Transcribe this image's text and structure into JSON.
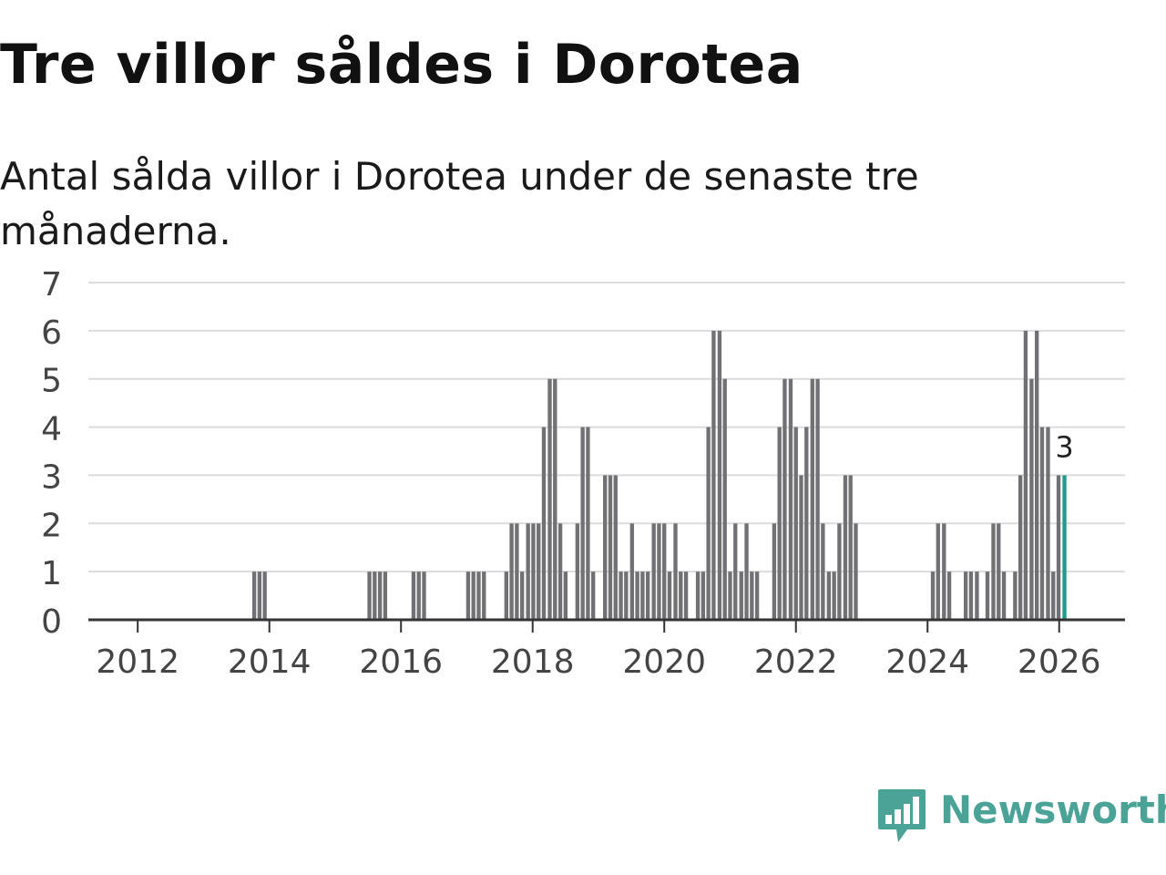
{
  "header": {
    "title": "Tre villor såldes i Dorotea",
    "subtitle": "Antal sålda villor i Dorotea under de senaste tre månaderna."
  },
  "brand": {
    "name": "Newsworthy",
    "icon": "bar-chart-speech-bubble-icon",
    "color": "#4aa396"
  },
  "colors": {
    "bar": "#717175",
    "highlight": "#1a9e8c",
    "grid": "#dcdcdc",
    "axis": "#333333",
    "tick_text": "#444444"
  },
  "chart_data": {
    "type": "bar",
    "title": "Tre villor såldes i Dorotea",
    "subtitle": "Antal sålda villor i Dorotea under de senaste tre månaderna.",
    "xlabel": "",
    "ylabel": "",
    "ylim": [
      0,
      7
    ],
    "yticks": [
      "0",
      "1",
      "2",
      "3",
      "4",
      "5",
      "6",
      "7"
    ],
    "grid": true,
    "x_tick_labels": [
      "2012",
      "2014",
      "2016",
      "2018",
      "2020",
      "2022",
      "2024",
      "2026"
    ],
    "x_tick_years": [
      2012,
      2014,
      2016,
      2018,
      2020,
      2022,
      2024,
      2026
    ],
    "x_range": [
      2011.25,
      2027.0
    ],
    "bar_width_years": 0.06,
    "series": [
      {
        "name": "Antal sålda villor",
        "points": [
          {
            "x": 2013.77,
            "y": 1
          },
          {
            "x": 2013.85,
            "y": 1
          },
          {
            "x": 2013.93,
            "y": 1
          },
          {
            "x": 2015.52,
            "y": 1
          },
          {
            "x": 2015.6,
            "y": 1
          },
          {
            "x": 2015.68,
            "y": 1
          },
          {
            "x": 2015.76,
            "y": 1
          },
          {
            "x": 2016.19,
            "y": 1
          },
          {
            "x": 2016.27,
            "y": 1
          },
          {
            "x": 2016.35,
            "y": 1
          },
          {
            "x": 2017.02,
            "y": 1
          },
          {
            "x": 2017.1,
            "y": 1
          },
          {
            "x": 2017.18,
            "y": 1
          },
          {
            "x": 2017.26,
            "y": 1
          },
          {
            "x": 2017.6,
            "y": 1
          },
          {
            "x": 2017.68,
            "y": 2
          },
          {
            "x": 2017.76,
            "y": 2
          },
          {
            "x": 2017.84,
            "y": 1
          },
          {
            "x": 2017.93,
            "y": 2
          },
          {
            "x": 2018.01,
            "y": 2
          },
          {
            "x": 2018.09,
            "y": 2
          },
          {
            "x": 2018.17,
            "y": 4
          },
          {
            "x": 2018.26,
            "y": 5
          },
          {
            "x": 2018.34,
            "y": 5
          },
          {
            "x": 2018.42,
            "y": 2
          },
          {
            "x": 2018.5,
            "y": 1
          },
          {
            "x": 2018.68,
            "y": 2
          },
          {
            "x": 2018.76,
            "y": 4
          },
          {
            "x": 2018.84,
            "y": 4
          },
          {
            "x": 2018.92,
            "y": 1
          },
          {
            "x": 2019.1,
            "y": 3
          },
          {
            "x": 2019.18,
            "y": 3
          },
          {
            "x": 2019.26,
            "y": 3
          },
          {
            "x": 2019.34,
            "y": 1
          },
          {
            "x": 2019.42,
            "y": 1
          },
          {
            "x": 2019.51,
            "y": 2
          },
          {
            "x": 2019.59,
            "y": 1
          },
          {
            "x": 2019.67,
            "y": 1
          },
          {
            "x": 2019.75,
            "y": 1
          },
          {
            "x": 2019.84,
            "y": 2
          },
          {
            "x": 2019.92,
            "y": 2
          },
          {
            "x": 2020.0,
            "y": 2
          },
          {
            "x": 2020.08,
            "y": 1
          },
          {
            "x": 2020.17,
            "y": 2
          },
          {
            "x": 2020.25,
            "y": 1
          },
          {
            "x": 2020.33,
            "y": 1
          },
          {
            "x": 2020.51,
            "y": 1
          },
          {
            "x": 2020.59,
            "y": 1
          },
          {
            "x": 2020.67,
            "y": 4
          },
          {
            "x": 2020.75,
            "y": 6
          },
          {
            "x": 2020.84,
            "y": 6
          },
          {
            "x": 2020.92,
            "y": 5
          },
          {
            "x": 2021.0,
            "y": 1
          },
          {
            "x": 2021.08,
            "y": 2
          },
          {
            "x": 2021.17,
            "y": 1
          },
          {
            "x": 2021.25,
            "y": 2
          },
          {
            "x": 2021.33,
            "y": 1
          },
          {
            "x": 2021.41,
            "y": 1
          },
          {
            "x": 2021.67,
            "y": 2
          },
          {
            "x": 2021.75,
            "y": 4
          },
          {
            "x": 2021.83,
            "y": 5
          },
          {
            "x": 2021.92,
            "y": 5
          },
          {
            "x": 2022.0,
            "y": 4
          },
          {
            "x": 2022.08,
            "y": 3
          },
          {
            "x": 2022.16,
            "y": 4
          },
          {
            "x": 2022.25,
            "y": 5
          },
          {
            "x": 2022.33,
            "y": 5
          },
          {
            "x": 2022.41,
            "y": 2
          },
          {
            "x": 2022.5,
            "y": 1
          },
          {
            "x": 2022.58,
            "y": 1
          },
          {
            "x": 2022.66,
            "y": 2
          },
          {
            "x": 2022.75,
            "y": 3
          },
          {
            "x": 2022.83,
            "y": 3
          },
          {
            "x": 2022.91,
            "y": 2
          },
          {
            "x": 2024.08,
            "y": 1
          },
          {
            "x": 2024.16,
            "y": 2
          },
          {
            "x": 2024.25,
            "y": 2
          },
          {
            "x": 2024.33,
            "y": 1
          },
          {
            "x": 2024.58,
            "y": 1
          },
          {
            "x": 2024.66,
            "y": 1
          },
          {
            "x": 2024.75,
            "y": 1
          },
          {
            "x": 2024.91,
            "y": 1
          },
          {
            "x": 2025.0,
            "y": 2
          },
          {
            "x": 2025.08,
            "y": 2
          },
          {
            "x": 2025.16,
            "y": 1
          },
          {
            "x": 2025.33,
            "y": 1
          },
          {
            "x": 2025.41,
            "y": 3
          },
          {
            "x": 2025.49,
            "y": 6
          },
          {
            "x": 2025.58,
            "y": 5
          },
          {
            "x": 2025.66,
            "y": 6
          },
          {
            "x": 2025.74,
            "y": 4
          },
          {
            "x": 2025.83,
            "y": 4
          },
          {
            "x": 2025.91,
            "y": 1
          },
          {
            "x": 2025.99,
            "y": 3
          },
          {
            "x": 2026.08,
            "y": 3,
            "highlight": true
          }
        ]
      }
    ],
    "annotations": [
      {
        "text": "3",
        "x": 2026.08,
        "y": 3
      }
    ]
  }
}
